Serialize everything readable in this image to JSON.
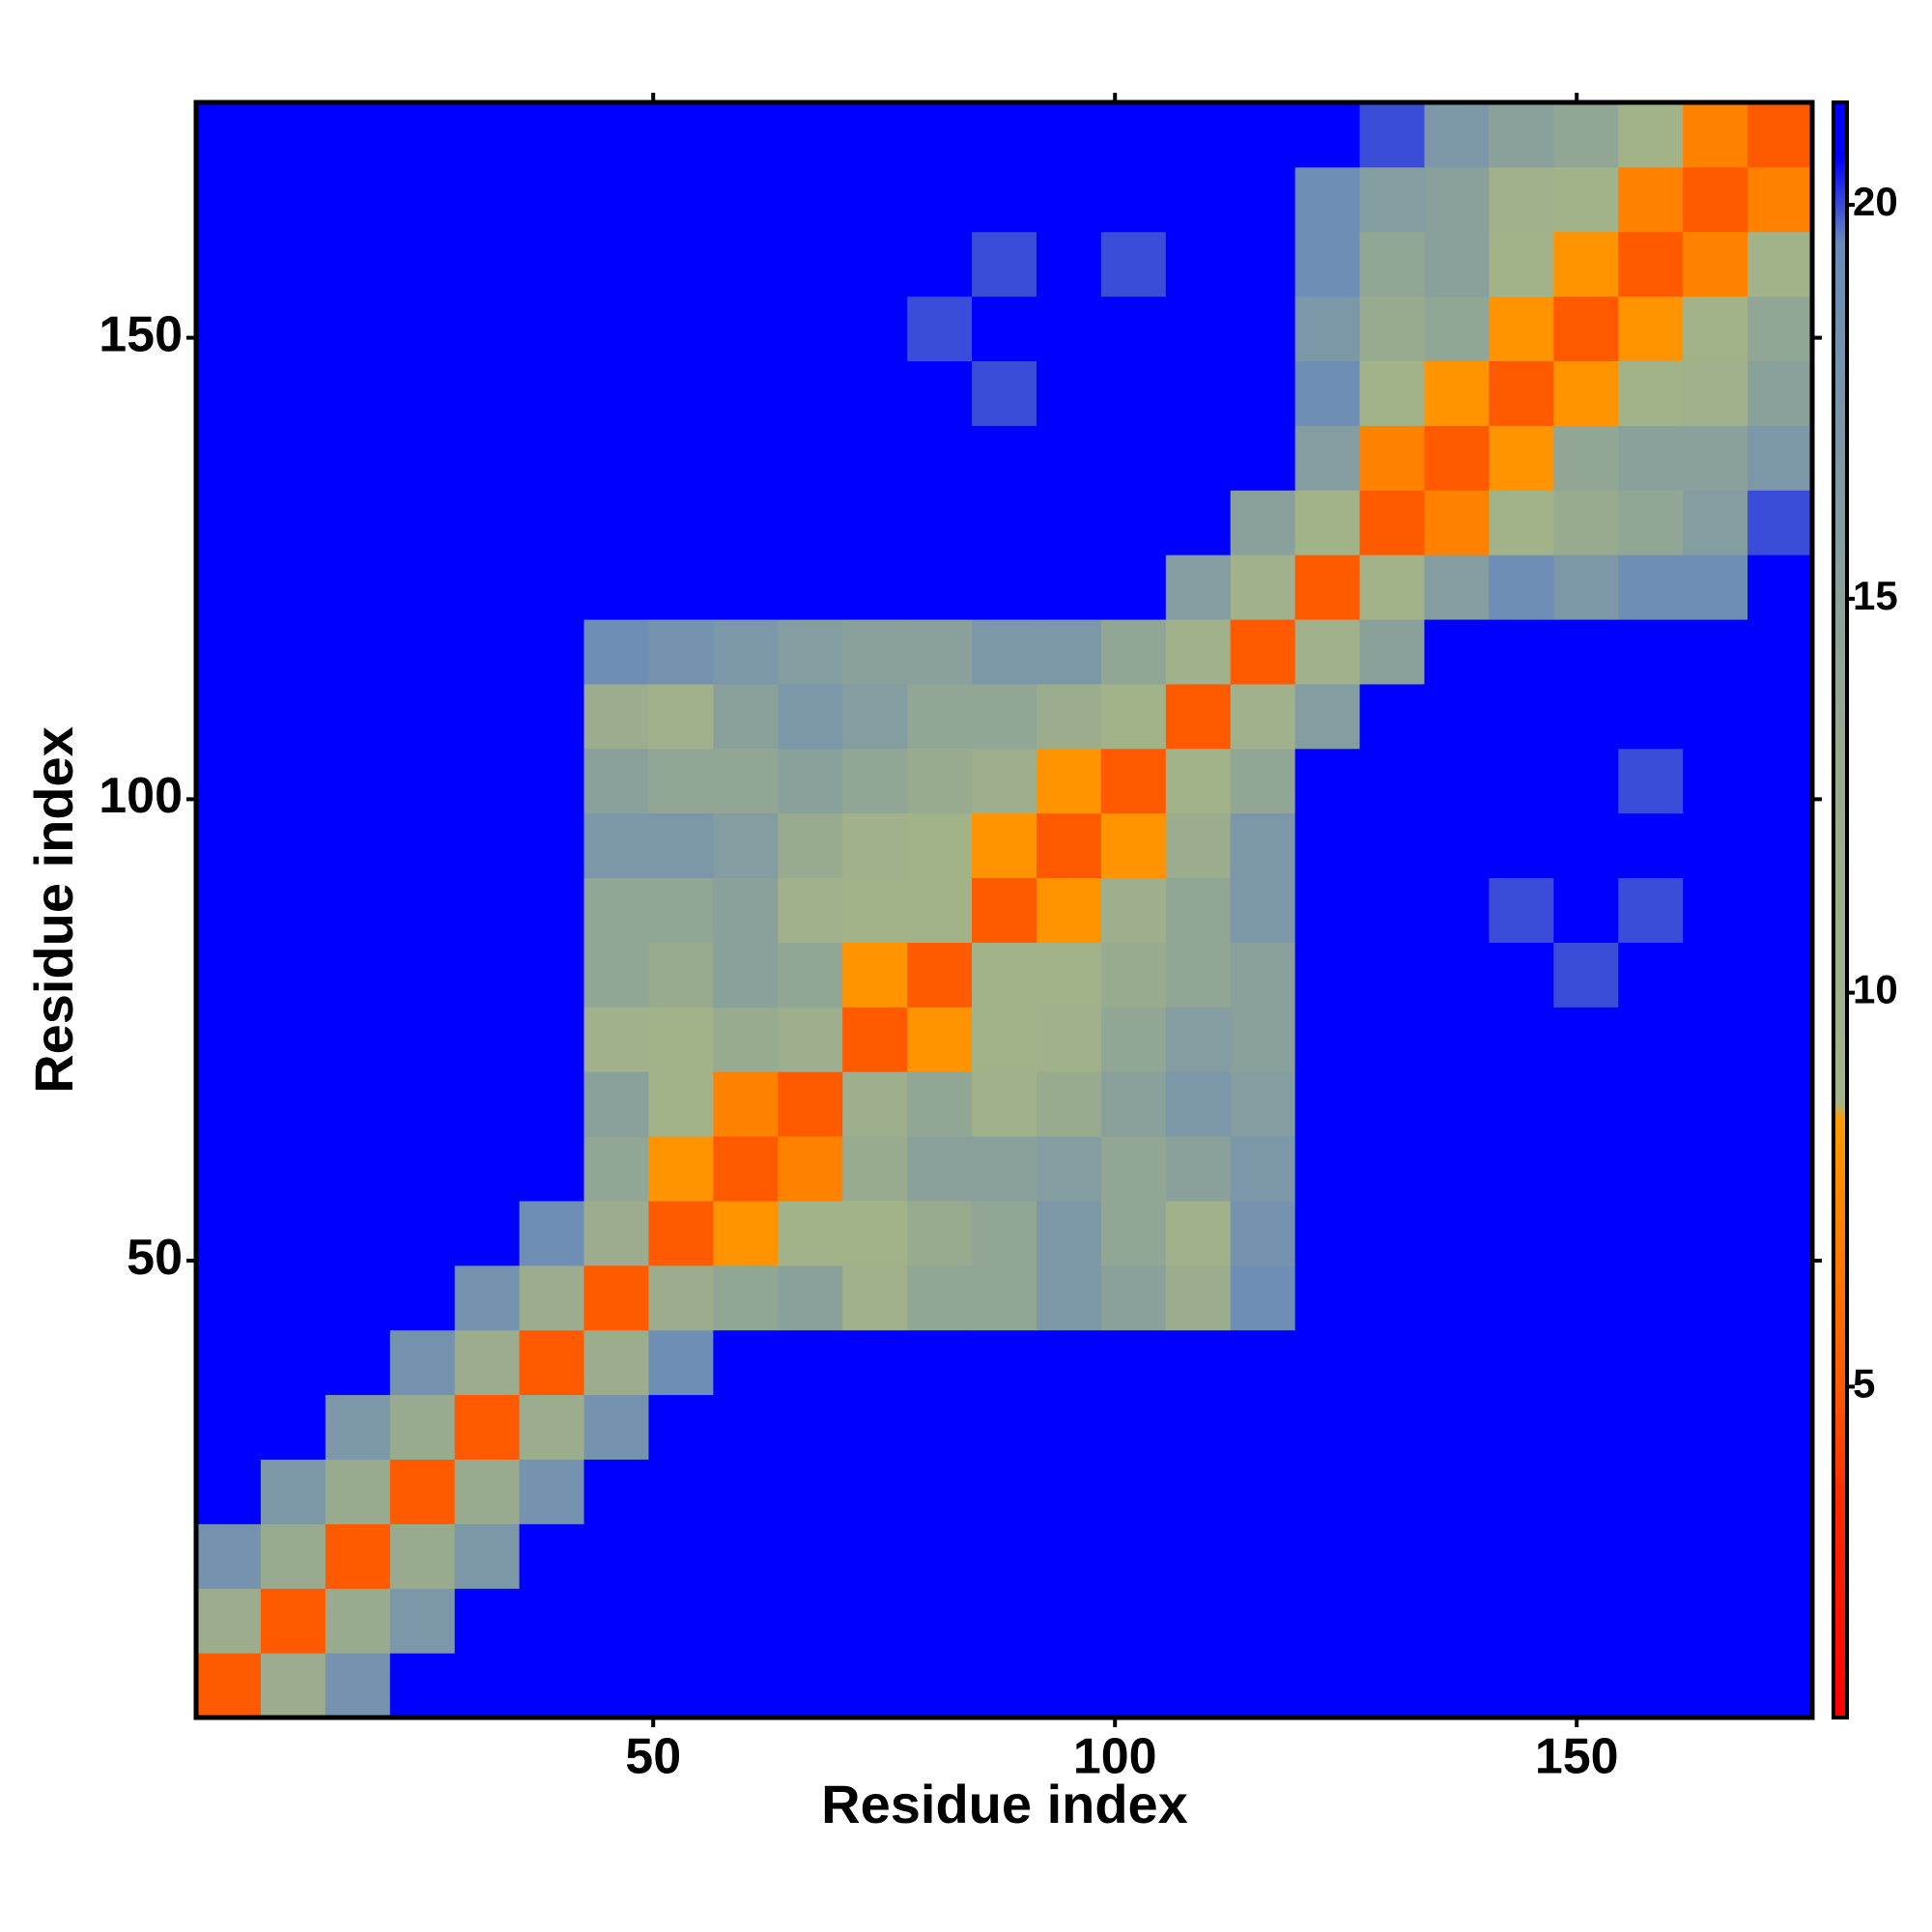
{
  "chart_data": {
    "type": "heatmap",
    "x_label": "Residue index",
    "y_label": "Residue index",
    "x": [
      4,
      11,
      18,
      25,
      32,
      39,
      46,
      53,
      60,
      67,
      74,
      81,
      88,
      95,
      102,
      109,
      116,
      123,
      130,
      137,
      144,
      151,
      158,
      165,
      172
    ],
    "y": [
      4,
      11,
      18,
      25,
      32,
      39,
      46,
      53,
      60,
      67,
      74,
      81,
      88,
      95,
      102,
      109,
      116,
      123,
      130,
      137,
      144,
      151,
      158,
      165,
      172
    ],
    "xlim": [
      0.5,
      175.5
    ],
    "ylim": [
      0.5,
      175.5
    ],
    "xticks": [
      50,
      100,
      150
    ],
    "yticks": [
      50,
      100,
      150
    ],
    "clim": [
      0.8,
      21.3
    ],
    "cticks": [
      5,
      10,
      15,
      20
    ],
    "colorscale": [
      [
        0.8,
        "#ff0000"
      ],
      [
        3.5,
        "#ff2a00"
      ],
      [
        5,
        "#ff5a00"
      ],
      [
        8.4,
        "#ff9c00"
      ],
      [
        8.6,
        "#a3b48a"
      ],
      [
        13,
        "#98ab8e"
      ],
      [
        19.5,
        "#6a8cb8"
      ],
      [
        20.6,
        "#0000ff"
      ],
      [
        21.3,
        "#0000ff"
      ]
    ],
    "z": [
      [
        5,
        12,
        18,
        21,
        21,
        21,
        21,
        21,
        21,
        21,
        21,
        21,
        21,
        21,
        21,
        21,
        21,
        21,
        21,
        21,
        21,
        21,
        21,
        21,
        21
      ],
      [
        12,
        5,
        13,
        17,
        21,
        21,
        21,
        21,
        21,
        21,
        21,
        21,
        21,
        21,
        21,
        21,
        21,
        21,
        21,
        21,
        21,
        21,
        21,
        21,
        21
      ],
      [
        18,
        13,
        5,
        13,
        17,
        21,
        21,
        21,
        21,
        21,
        21,
        21,
        21,
        21,
        21,
        21,
        21,
        21,
        21,
        21,
        21,
        21,
        21,
        21,
        21
      ],
      [
        21,
        17,
        13,
        5,
        13,
        18,
        21,
        21,
        21,
        21,
        21,
        21,
        21,
        21,
        21,
        21,
        21,
        21,
        21,
        21,
        21,
        21,
        21,
        21,
        21
      ],
      [
        21,
        21,
        17,
        13,
        5,
        12,
        18,
        21,
        21,
        21,
        21,
        21,
        21,
        21,
        21,
        21,
        21,
        21,
        21,
        21,
        21,
        21,
        21,
        21,
        21
      ],
      [
        21,
        21,
        21,
        18,
        12,
        5,
        12,
        19,
        21,
        21,
        21,
        21,
        21,
        21,
        21,
        21,
        21,
        21,
        21,
        21,
        21,
        21,
        21,
        21,
        21
      ],
      [
        21,
        21,
        21,
        21,
        18,
        12,
        5,
        12,
        14,
        15,
        10,
        14,
        14,
        17,
        15,
        12,
        19,
        21,
        21,
        21,
        21,
        21,
        21,
        21,
        21
      ],
      [
        21,
        21,
        21,
        21,
        21,
        19,
        12,
        5,
        8,
        9,
        9,
        13,
        14,
        17,
        14,
        10,
        18,
        21,
        21,
        21,
        21,
        21,
        21,
        21,
        21
      ],
      [
        21,
        21,
        21,
        21,
        21,
        21,
        14,
        8,
        5,
        7,
        13,
        15,
        15,
        16,
        14,
        15,
        17,
        21,
        21,
        21,
        21,
        21,
        21,
        21,
        21
      ],
      [
        21,
        21,
        21,
        21,
        21,
        21,
        15,
        9,
        7,
        5,
        11,
        14,
        10,
        13,
        15,
        17,
        16,
        21,
        21,
        21,
        21,
        21,
        21,
        21,
        21
      ],
      [
        21,
        21,
        21,
        21,
        21,
        21,
        10,
        9,
        13,
        11,
        5,
        8,
        9,
        10,
        14,
        16,
        15,
        21,
        21,
        21,
        21,
        21,
        21,
        21,
        21
      ],
      [
        21,
        21,
        21,
        21,
        21,
        21,
        14,
        13,
        15,
        14,
        8,
        5,
        9,
        9,
        13,
        14,
        15,
        21,
        21,
        21,
        21,
        20,
        21,
        21,
        21
      ],
      [
        21,
        21,
        21,
        21,
        21,
        21,
        14,
        14,
        15,
        10,
        9,
        9,
        5,
        8,
        11,
        14,
        17,
        21,
        21,
        21,
        20,
        21,
        20,
        21,
        21
      ],
      [
        21,
        21,
        21,
        21,
        21,
        21,
        17,
        17,
        16,
        13,
        10,
        9,
        8,
        5,
        8,
        12,
        17,
        21,
        21,
        21,
        21,
        21,
        21,
        21,
        21
      ],
      [
        21,
        21,
        21,
        21,
        21,
        21,
        15,
        14,
        14,
        15,
        14,
        13,
        11,
        8,
        5,
        9,
        14,
        21,
        21,
        21,
        21,
        21,
        20,
        21,
        21
      ],
      [
        21,
        21,
        21,
        21,
        21,
        21,
        12,
        10,
        15,
        17,
        16,
        14,
        14,
        12,
        9,
        5,
        10,
        16,
        21,
        21,
        21,
        21,
        21,
        21,
        21
      ],
      [
        21,
        21,
        21,
        21,
        21,
        21,
        19,
        18,
        17,
        16,
        15,
        15,
        17,
        17,
        14,
        10,
        5,
        10,
        15,
        21,
        21,
        21,
        21,
        21,
        21
      ],
      [
        21,
        21,
        21,
        21,
        21,
        21,
        21,
        21,
        21,
        21,
        21,
        21,
        21,
        21,
        21,
        16,
        10,
        5,
        9,
        16,
        19,
        17,
        19,
        19,
        21
      ],
      [
        21,
        21,
        21,
        21,
        21,
        21,
        21,
        21,
        21,
        21,
        21,
        21,
        21,
        21,
        21,
        21,
        15,
        9,
        5,
        7,
        9,
        13,
        14,
        16,
        20
      ],
      [
        21,
        21,
        21,
        21,
        21,
        21,
        21,
        21,
        21,
        21,
        21,
        21,
        21,
        21,
        21,
        21,
        21,
        16,
        7,
        5,
        8,
        14,
        15,
        15,
        17
      ],
      [
        21,
        21,
        21,
        21,
        21,
        21,
        21,
        21,
        21,
        21,
        21,
        21,
        20,
        21,
        21,
        21,
        21,
        19,
        9,
        8,
        5,
        8,
        9,
        10,
        15
      ],
      [
        21,
        21,
        21,
        21,
        21,
        21,
        21,
        21,
        21,
        21,
        21,
        20,
        21,
        21,
        21,
        21,
        21,
        17,
        13,
        14,
        8,
        5,
        8,
        9,
        14
      ],
      [
        21,
        21,
        21,
        21,
        21,
        21,
        21,
        21,
        21,
        21,
        21,
        21,
        20,
        21,
        20,
        21,
        21,
        19,
        14,
        15,
        9,
        8,
        5,
        7,
        9
      ],
      [
        21,
        21,
        21,
        21,
        21,
        21,
        21,
        21,
        21,
        21,
        21,
        21,
        21,
        21,
        21,
        21,
        21,
        19,
        16,
        15,
        10,
        9,
        7,
        5,
        7
      ],
      [
        21,
        21,
        21,
        21,
        21,
        21,
        21,
        21,
        21,
        21,
        21,
        21,
        21,
        21,
        21,
        21,
        21,
        21,
        20,
        17,
        15,
        14,
        9,
        7,
        5
      ]
    ]
  }
}
